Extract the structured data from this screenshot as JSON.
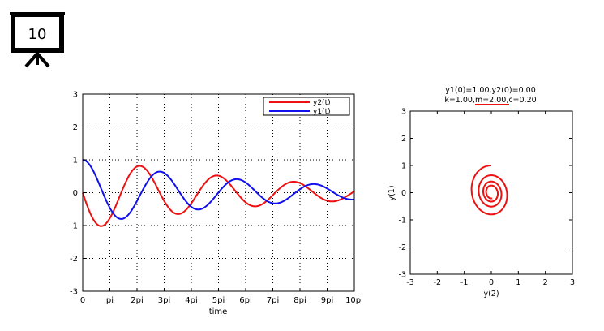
{
  "slide": {
    "number": "10"
  },
  "chart_data": [
    {
      "type": "line",
      "xlabel": "time",
      "ylabel": "",
      "xlim": [
        0,
        31.4159
      ],
      "ylim": [
        -3,
        3
      ],
      "xtick_labels": [
        "0",
        "pi",
        "2pi",
        "3pi",
        "4pi",
        "5pi",
        "6pi",
        "7pi",
        "8pi",
        "9pi",
        "10pi"
      ],
      "ytick_labels": [
        "-3",
        "-2",
        "-1",
        "0",
        "1",
        "2",
        "3"
      ],
      "grid": true,
      "legend_position": "top-right",
      "model": {
        "k": 1.0,
        "m": 2.0,
        "c": 0.2,
        "y1_0": 1.0,
        "y2_0": 0.0
      },
      "series": [
        {
          "name": "y2(t)",
          "color": "#ee1111"
        },
        {
          "name": "y1(t)",
          "color": "#1111ee"
        }
      ]
    },
    {
      "type": "line",
      "title_line1": "y1(0)=1.00,y2(0)=0.00",
      "title_line2": "k=1.00,m=2.00,c=0.20",
      "xlabel": "y(2)",
      "ylabel": "y(1)",
      "xlim": [
        -3,
        3
      ],
      "ylim": [
        -3,
        3
      ],
      "xtick_labels": [
        "-3",
        "-2",
        "-1",
        "0",
        "1",
        "2",
        "3"
      ],
      "ytick_labels": [
        "-3",
        "-2",
        "-1",
        "0",
        "1",
        "2",
        "3"
      ],
      "grid": false,
      "series": [
        {
          "color": "#ee1111"
        }
      ]
    }
  ]
}
